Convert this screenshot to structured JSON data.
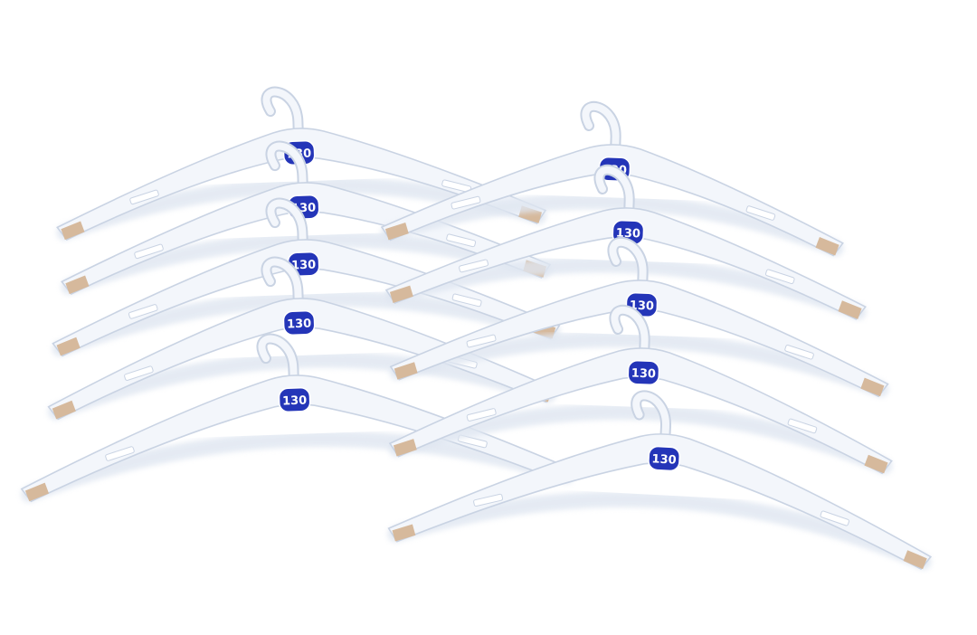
{
  "scene": {
    "subject": "hanger-stack",
    "background_color": "#ffffff",
    "hanger_body_color": "#f3f6fb",
    "hanger_edge_color": "#c9d3e3",
    "hanger_shadow_color": "#dfe6f1",
    "notch_fill_color": "#d6b99c",
    "size_tag_color": "#2435b8",
    "size_tag_text_color": "#ffffff"
  },
  "stacks": [
    {
      "name": "left-stack",
      "hangers": [
        {
          "size_label": "130"
        },
        {
          "size_label": "130"
        },
        {
          "size_label": "130"
        },
        {
          "size_label": "130"
        },
        {
          "size_label": "130"
        }
      ]
    },
    {
      "name": "right-stack",
      "hangers": [
        {
          "size_label": "130"
        },
        {
          "size_label": "130"
        },
        {
          "size_label": "130"
        },
        {
          "size_label": "130"
        },
        {
          "size_label": "130"
        }
      ]
    }
  ]
}
